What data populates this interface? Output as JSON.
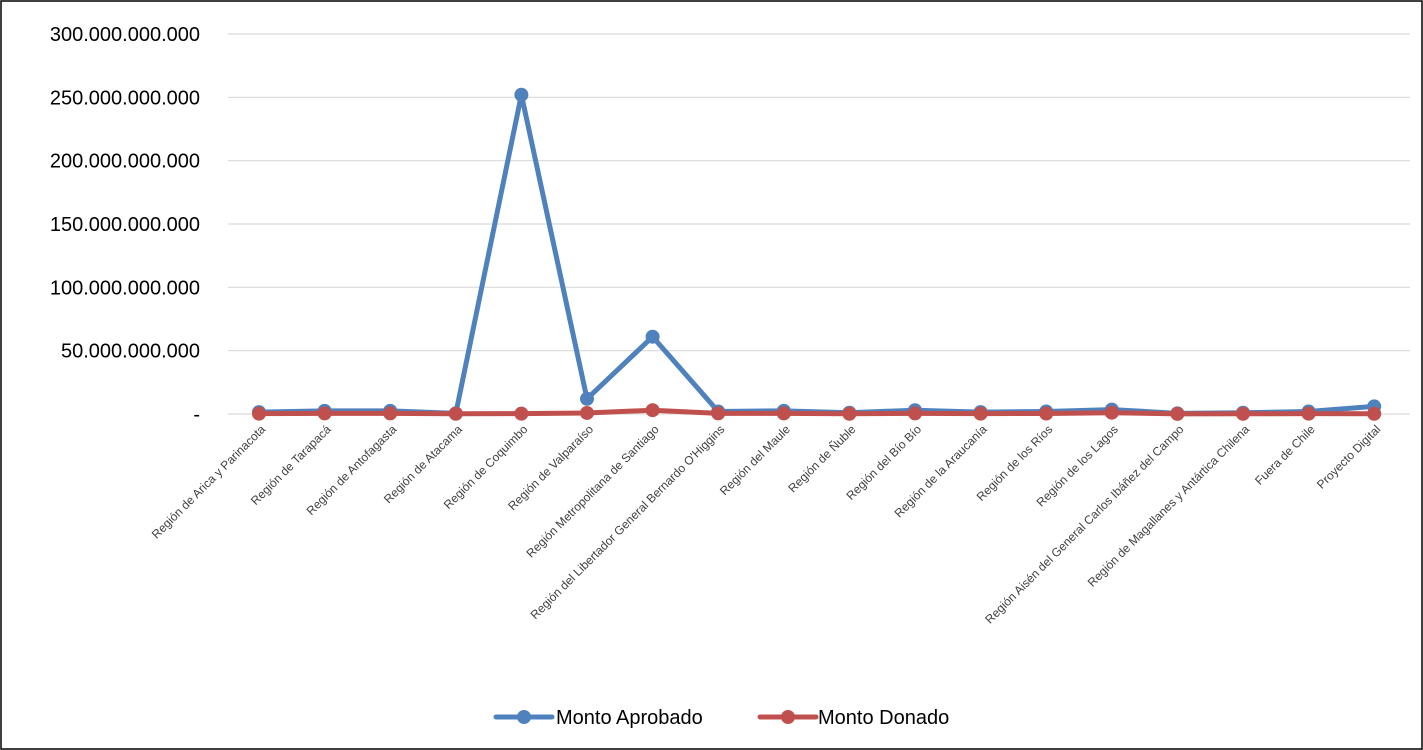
{
  "chart_data": {
    "type": "line",
    "title": "",
    "xlabel": "",
    "ylabel": "",
    "ylim": [
      0,
      300000000000
    ],
    "grid": true,
    "legend_position": "bottom",
    "y_ticks": [
      {
        "value": 0,
        "label": "-"
      },
      {
        "value": 50000000000,
        "label": "50.000.000.000"
      },
      {
        "value": 100000000000,
        "label": "100.000.000.000"
      },
      {
        "value": 150000000000,
        "label": "150.000.000.000"
      },
      {
        "value": 200000000000,
        "label": "200.000.000.000"
      },
      {
        "value": 250000000000,
        "label": "250.000.000.000"
      },
      {
        "value": 300000000000,
        "label": "300.000.000.000"
      }
    ],
    "categories": [
      "Región de Arica y Parinacota",
      "Región de Tarapacá",
      "Región de Antofagasta",
      "Región de Atacama",
      "Región de Coquimbo",
      "Región de Valparaíso",
      "Región Metropolitana de Santiago",
      "Región del Libertador General Bernardo O'Higgins",
      "Región del Maule",
      "Región de Ñuble",
      "Región del Bío Bío",
      "Región de la Araucanía",
      "Región de los Ríos",
      "Región de los Lagos",
      "Región Aisén del General Carlos Ibáñez del Campo",
      "Región de Magallanes y Antártica Chilena",
      "Fuera de Chile",
      "Proyecto Digital"
    ],
    "series": [
      {
        "name": "Monto Aprobado",
        "color": "#4F81BD",
        "values": [
          1500000000,
          2500000000,
          2500000000,
          500000000,
          252000000000,
          12000000000,
          61000000000,
          2000000000,
          2500000000,
          1000000000,
          3000000000,
          1500000000,
          2000000000,
          3500000000,
          500000000,
          1000000000,
          2000000000,
          6000000000
        ]
      },
      {
        "name": "Monto Donado",
        "color": "#C0504D",
        "values": [
          300000000,
          500000000,
          500000000,
          200000000,
          300000000,
          800000000,
          3000000000,
          500000000,
          500000000,
          200000000,
          500000000,
          300000000,
          400000000,
          1000000000,
          100000000,
          200000000,
          300000000,
          200000000
        ]
      }
    ]
  }
}
